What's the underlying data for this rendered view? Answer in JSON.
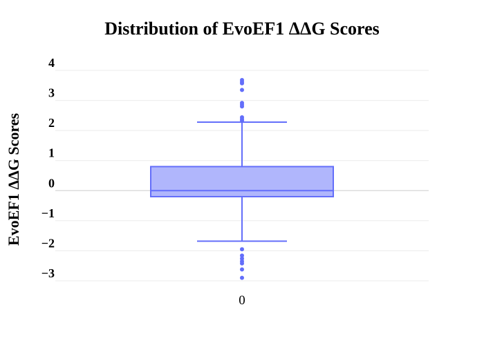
{
  "chart_data": {
    "type": "box",
    "title": "Distribution of EvoEF1 ΔΔG Scores",
    "xlabel": "",
    "ylabel": "EvoEF1 ΔΔG Scores",
    "categories": [
      "0"
    ],
    "ylim": [
      -3.3,
      4.0
    ],
    "yticks": [
      4,
      3,
      2,
      1,
      0,
      -1,
      -2,
      -3
    ],
    "ytick_labels": [
      "4",
      "3",
      "2",
      "1",
      "0",
      "−1",
      "−2",
      "−3"
    ],
    "grid": true,
    "legend": "none",
    "series": [
      {
        "q1": -0.2,
        "median": 0.0,
        "q3": 0.8,
        "lower_fence": -1.68,
        "upper_fence": 2.28,
        "outliers": [
          3.68,
          3.62,
          3.57,
          3.35,
          2.92,
          2.86,
          2.8,
          2.44,
          2.38,
          2.33,
          -1.95,
          -2.16,
          -2.26,
          -2.35,
          -2.42,
          -2.62,
          -2.9
        ]
      }
    ],
    "colors": {
      "line": "#636efa",
      "fill": "#b0b6fc",
      "grid": "#ebebeb",
      "zeroline": "#dcdcdc"
    }
  }
}
